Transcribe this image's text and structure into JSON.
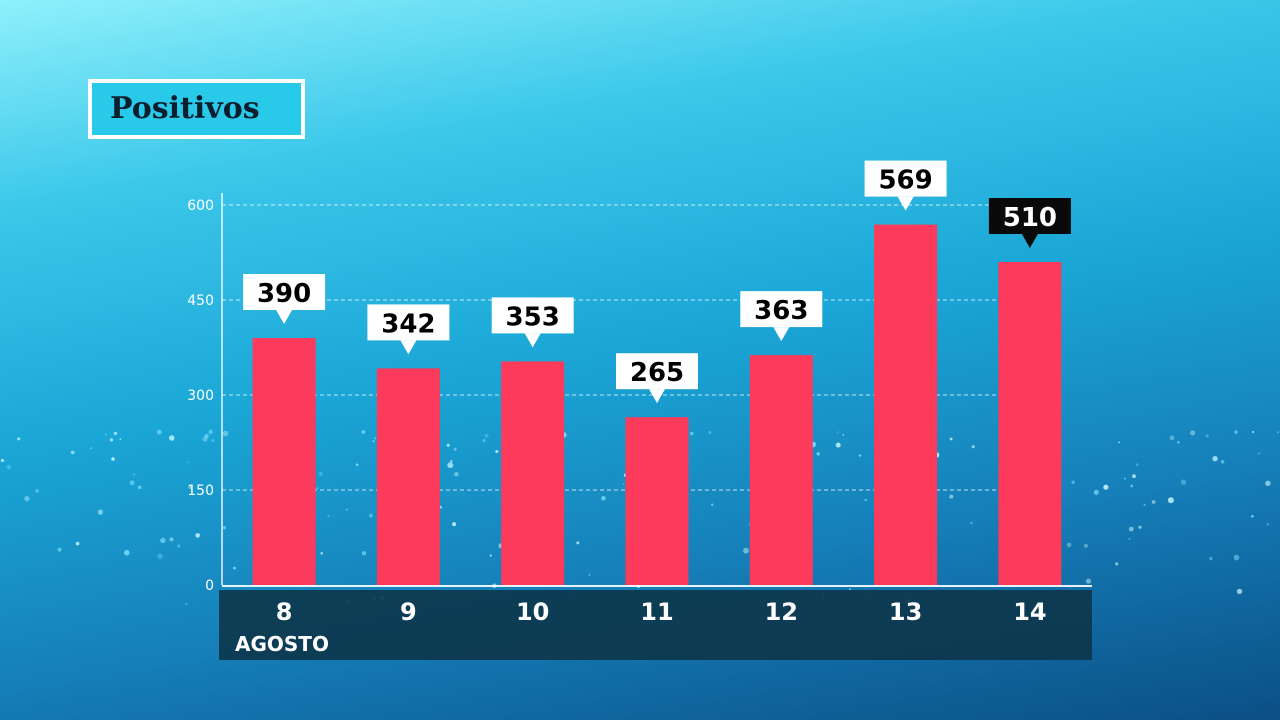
{
  "title": "Positivos",
  "colors": {
    "bar": "#fb3a5c",
    "label_bg": "#ffffff",
    "label_text": "#000000",
    "highlight_label_bg": "#0a0a0a",
    "highlight_label_text": "#ffffff",
    "axis_bar": "#0d3a50",
    "grid": "#ffffff"
  },
  "xaxis_caption": "AGOSTO",
  "chart_data": {
    "type": "bar",
    "title": "Positivos",
    "categories": [
      "8",
      "9",
      "10",
      "11",
      "12",
      "13",
      "14"
    ],
    "values": [
      390,
      342,
      353,
      265,
      363,
      569,
      510
    ],
    "value_labels": [
      "390",
      "342",
      "353",
      "265",
      "363",
      "569",
      "510"
    ],
    "highlight_index": 6,
    "xlabel": "AGOSTO",
    "ylabel": "",
    "ylim": [
      0,
      600
    ],
    "yticks": [
      0,
      150,
      300,
      450,
      600
    ],
    "grid": true,
    "grid_style": "dashed"
  }
}
